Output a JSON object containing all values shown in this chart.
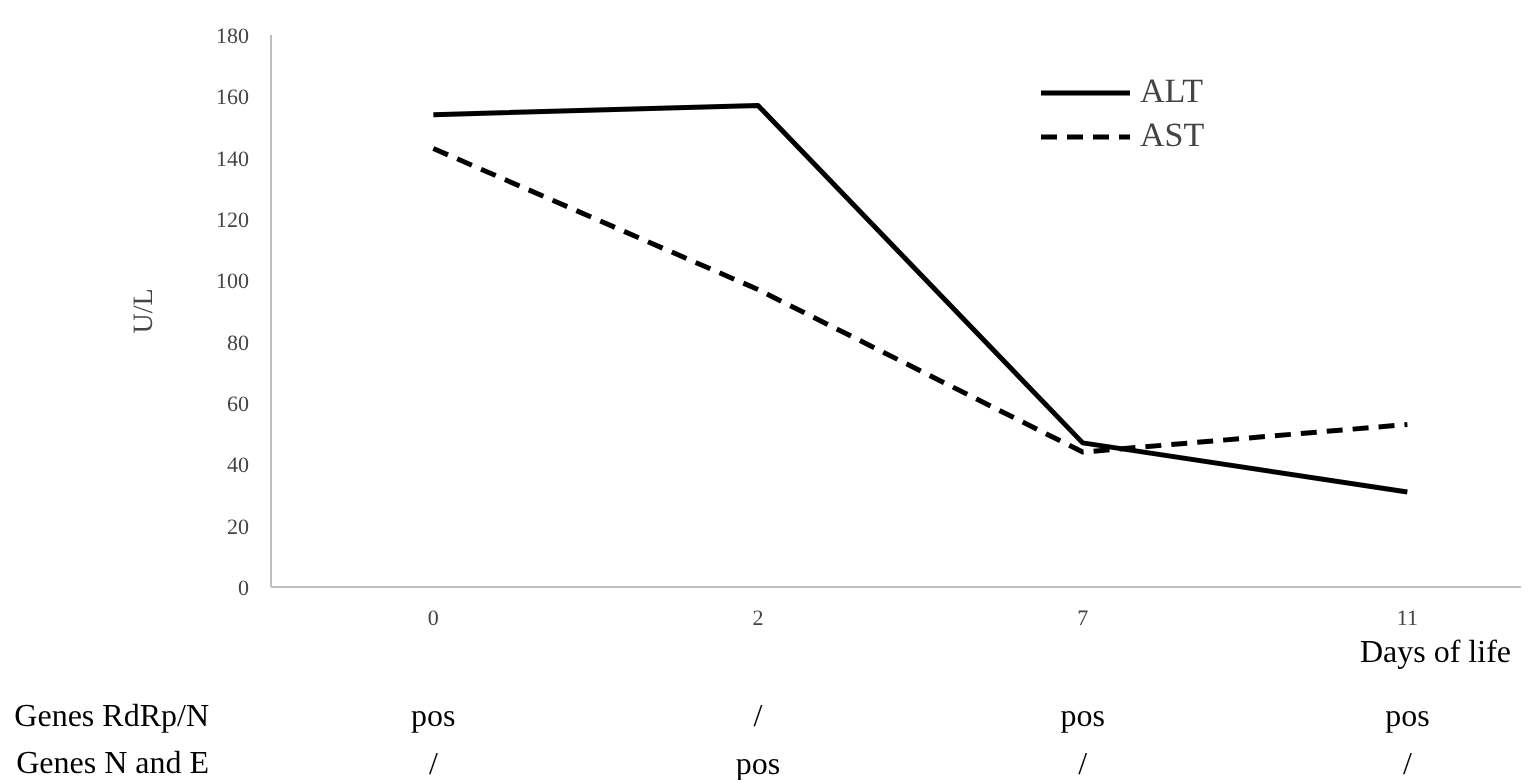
{
  "chart_data": {
    "type": "line",
    "xlabel": "Days of life",
    "ylabel": "U/L",
    "categories": [
      "0",
      "2",
      "7",
      "11"
    ],
    "ylim": [
      0,
      180
    ],
    "yticks": [
      0,
      20,
      40,
      60,
      80,
      100,
      120,
      140,
      160,
      180
    ],
    "series": [
      {
        "name": "ALT",
        "color": "#000000",
        "line_style": "solid",
        "values": [
          154,
          157,
          47,
          31
        ]
      },
      {
        "name": "AST",
        "color": "#000000",
        "line_style": "dashed",
        "values": [
          143,
          97,
          44,
          53
        ]
      }
    ],
    "legend": "top right",
    "grid": false,
    "annotations": [
      "Genes RdRp/N",
      "pos",
      "/",
      "pos",
      "pos",
      "Genes N and E",
      "/",
      "pos",
      "/",
      "/"
    ]
  }
}
